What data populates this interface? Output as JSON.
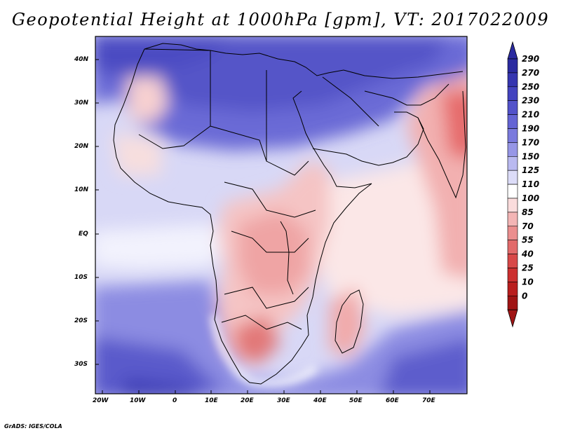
{
  "title": "Geopotential Height at 1000hPa [gpm], VT: 2017022009",
  "credit": "GrADS: IGES/COLA",
  "map": {
    "lon_ticks": [
      "20W",
      "10W",
      "0",
      "10E",
      "20E",
      "30E",
      "40E",
      "50E",
      "60E",
      "70E"
    ],
    "lat_ticks": [
      "40N",
      "30N",
      "20N",
      "10N",
      "EQ",
      "10S",
      "20S",
      "30S"
    ]
  },
  "colorbar": {
    "levels": [
      "290",
      "270",
      "250",
      "230",
      "210",
      "190",
      "170",
      "150",
      "125",
      "110",
      "100",
      "85",
      "70",
      "55",
      "40",
      "25",
      "10",
      "0"
    ],
    "colors": [
      "#2a2aa0",
      "#3535b0",
      "#4343bf",
      "#5252ca",
      "#6464d4",
      "#7a7add",
      "#9696e6",
      "#b9b9f0",
      "#dcdcf8",
      "#ffffff",
      "#fadcdc",
      "#f3b5b5",
      "#eb8e8e",
      "#e26a6a",
      "#d84848",
      "#cc2f2f",
      "#b91e1e",
      "#a01414"
    ]
  }
}
